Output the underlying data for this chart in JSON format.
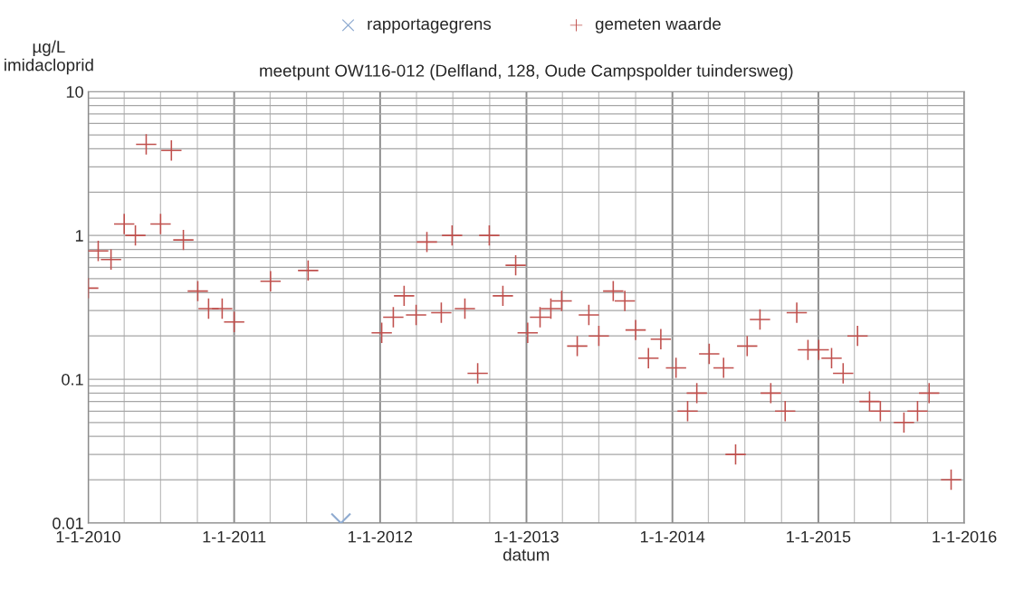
{
  "chart_data": {
    "type": "scatter",
    "title": "meetpunt OW116-012 (Delfland, 128, Oude Campspolder tuindersweg)",
    "xlabel": "datum",
    "ylabel": "µg/L\nimidacloprid",
    "log": "y",
    "grid": true,
    "legend": "top",
    "xlim": [
      "2010-01-01",
      "2016-01-01"
    ],
    "ylim": [
      0.01,
      10
    ],
    "xticks": [
      {
        "value": "2010-01-01",
        "label": "1-1-2010"
      },
      {
        "value": "2011-01-01",
        "label": "1-1-2011"
      },
      {
        "value": "2012-01-01",
        "label": "1-1-2012"
      },
      {
        "value": "2013-01-01",
        "label": "1-1-2013"
      },
      {
        "value": "2014-01-01",
        "label": "1-1-2014"
      },
      {
        "value": "2015-01-01",
        "label": "1-1-2015"
      },
      {
        "value": "2016-01-01",
        "label": "1-1-2016"
      }
    ],
    "yticks": [
      0.01,
      0.1,
      1,
      10
    ],
    "series": [
      {
        "name": "rapportagegrens",
        "color": "#8eaad0",
        "marker": "cross",
        "x": [
          "2011-09-25"
        ],
        "values": [
          0.01
        ]
      },
      {
        "name": "gemeten waarde",
        "color": "#c0504d",
        "x": [
          "2010-01-01",
          "2010-01-26",
          "2010-02-27",
          "2010-04-01",
          "2010-04-29",
          "2010-05-26",
          "2010-07-01",
          "2010-07-28",
          "2010-08-27",
          "2010-10-02",
          "2010-10-29",
          "2010-12-02",
          "2011-01-01",
          "2011-04-02",
          "2011-07-05",
          "2012-01-05",
          "2012-02-03",
          "2012-03-01",
          "2012-03-31",
          "2012-04-27",
          "2012-06-02",
          "2012-06-29",
          "2012-07-31",
          "2012-09-01",
          "2012-09-30",
          "2012-11-03",
          "2012-12-05",
          "2013-01-04",
          "2013-02-04",
          "2013-03-03",
          "2013-03-30",
          "2013-05-08",
          "2013-06-06",
          "2013-07-01",
          "2013-08-06",
          "2013-09-04",
          "2013-10-01",
          "2013-11-02",
          "2013-12-03",
          "2014-01-10",
          "2014-02-08",
          "2014-03-03",
          "2014-04-03",
          "2014-05-09",
          "2014-06-08",
          "2014-07-07",
          "2014-08-08",
          "2014-09-04",
          "2014-10-10",
          "2014-11-08",
          "2014-12-06",
          "2015-01-02",
          "2015-02-03",
          "2015-03-04",
          "2015-04-09",
          "2015-05-09",
          "2015-06-05",
          "2015-08-03",
          "2015-09-06",
          "2015-10-05",
          "2015-11-29"
        ],
        "values": [
          0.43,
          0.78,
          0.68,
          1.2,
          1.0,
          4.3,
          1.2,
          3.9,
          0.93,
          0.41,
          0.31,
          0.31,
          0.25,
          0.48,
          0.57,
          0.21,
          0.27,
          0.38,
          0.28,
          0.9,
          0.29,
          1.0,
          0.31,
          0.11,
          1.0,
          0.38,
          0.62,
          0.21,
          0.27,
          0.31,
          0.35,
          0.17,
          0.28,
          0.2,
          0.41,
          0.35,
          0.22,
          0.14,
          0.19,
          0.12,
          0.06,
          0.08,
          0.15,
          0.12,
          0.03,
          0.17,
          0.26,
          0.08,
          0.06,
          0.29,
          0.16,
          0.16,
          0.14,
          0.11,
          0.2,
          0.07,
          0.06,
          0.05,
          0.06,
          0.08,
          0.02
        ]
      }
    ]
  }
}
